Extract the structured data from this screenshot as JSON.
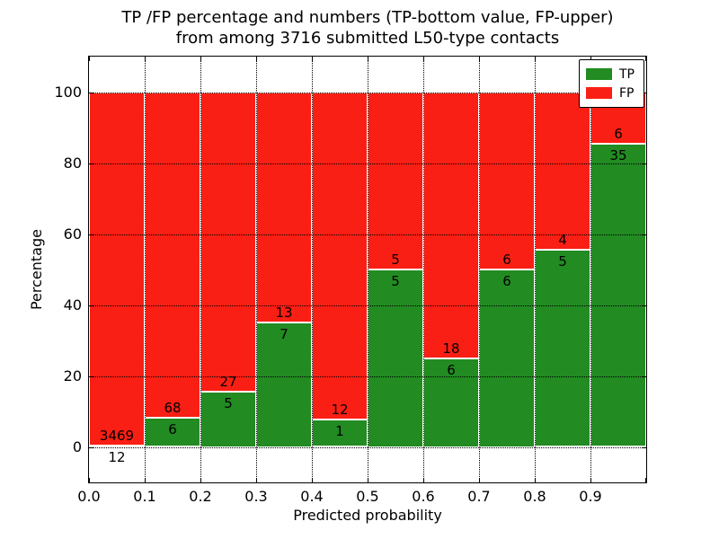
{
  "chart_data": {
    "type": "bar",
    "stacked": true,
    "normalization": "each bin scaled to 100 percent",
    "title_line1": "TP /FP percentage and numbers (TP-bottom value, FP-upper)",
    "title_line2": "from among 3716 submitted L50-type contacts",
    "xlabel": "Predicted probability",
    "ylabel": "Percentage",
    "total_submitted": 3716,
    "bin_edges": [
      0.0,
      0.1,
      0.2,
      0.3,
      0.4,
      0.5,
      0.6,
      0.7,
      0.8,
      0.9,
      1.0
    ],
    "series": [
      {
        "name": "TP",
        "color": "#228b22",
        "counts": [
          12,
          6,
          5,
          7,
          1,
          5,
          6,
          6,
          5,
          35
        ]
      },
      {
        "name": "FP",
        "color": "#fa1f14",
        "counts": [
          3469,
          68,
          27,
          13,
          12,
          5,
          18,
          6,
          4,
          6
        ]
      }
    ],
    "tp_percent": [
      0.34,
      8.11,
      15.63,
      35.0,
      7.69,
      50.0,
      25.0,
      50.0,
      55.56,
      85.37
    ],
    "ylim": [
      -10,
      110
    ],
    "xlim": [
      0.0,
      1.0
    ],
    "yticks": [
      0,
      20,
      40,
      60,
      80,
      100
    ],
    "xtick_labels": [
      "0.0",
      "0.1",
      "0.2",
      "0.3",
      "0.4",
      "0.5",
      "0.6",
      "0.7",
      "0.8",
      "0.9"
    ],
    "grid_style": "dotted",
    "legend": {
      "position": "upper right",
      "items": [
        {
          "label": "TP",
          "color": "#228b22"
        },
        {
          "label": "FP",
          "color": "#fa1f14"
        }
      ]
    }
  }
}
